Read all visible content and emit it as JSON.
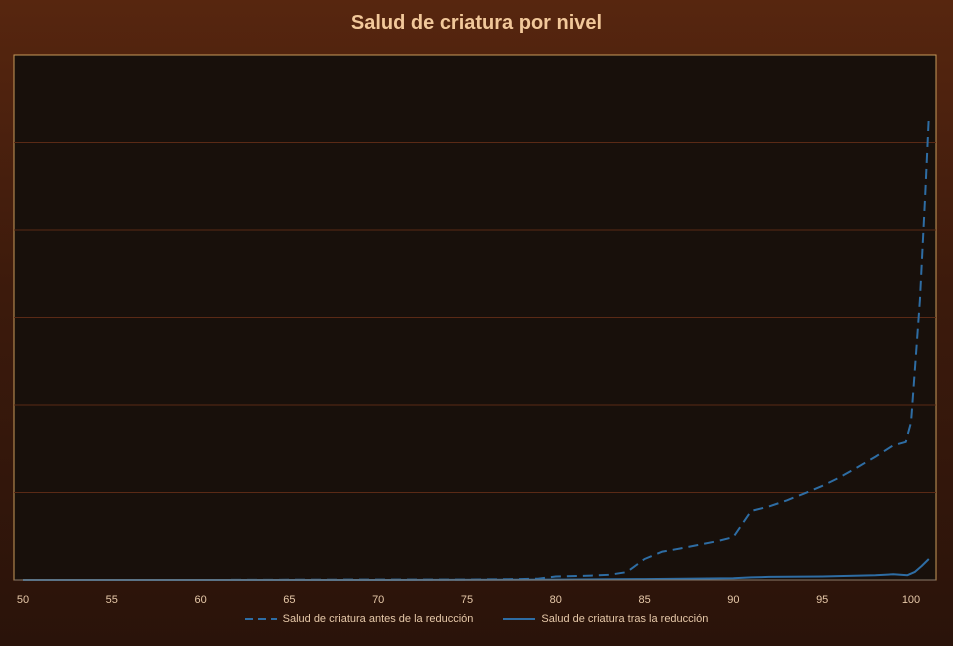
{
  "chart_data": {
    "type": "line",
    "title": "Salud de criatura por nivel",
    "xlabel": "",
    "ylabel": "",
    "xlim": [
      50,
      101
    ],
    "ylim": [
      0,
      100
    ],
    "grid": true,
    "legend_position": "bottom",
    "x_ticks": [
      50,
      55,
      60,
      65,
      70,
      75,
      80,
      85,
      90,
      95,
      100
    ],
    "series": [
      {
        "name": "Salud de criatura antes de la reducción",
        "style": "dashed",
        "color": "#2e6da4",
        "x": [
          50,
          60,
          70,
          75,
          78,
          79,
          80,
          82,
          83,
          84,
          85,
          86,
          87,
          88,
          89,
          90,
          91,
          92,
          93,
          94,
          95,
          96,
          97,
          98,
          99,
          99.7,
          100,
          100.5,
          100.8,
          101
        ],
        "y": [
          0,
          0,
          0.1,
          0.1,
          0.2,
          0.3,
          0.8,
          1.0,
          1.2,
          1.8,
          4.8,
          6.5,
          7.2,
          8.0,
          8.8,
          9.8,
          15.8,
          16.8,
          18.2,
          19.8,
          21.5,
          23.5,
          25.8,
          28.2,
          30.8,
          31.6,
          36,
          64,
          88,
          106
        ]
      },
      {
        "name": "Salud de criatura tras la reducción",
        "style": "solid",
        "color": "#2e6da4",
        "x": [
          50,
          60,
          70,
          80,
          85,
          90,
          91,
          92,
          95,
          98,
          99,
          99.8,
          100.2,
          100.6,
          101
        ],
        "y": [
          0,
          0,
          0,
          0.1,
          0.2,
          0.4,
          0.6,
          0.7,
          0.8,
          1.1,
          1.3,
          1.1,
          1.8,
          3.2,
          4.8
        ]
      }
    ]
  }
}
